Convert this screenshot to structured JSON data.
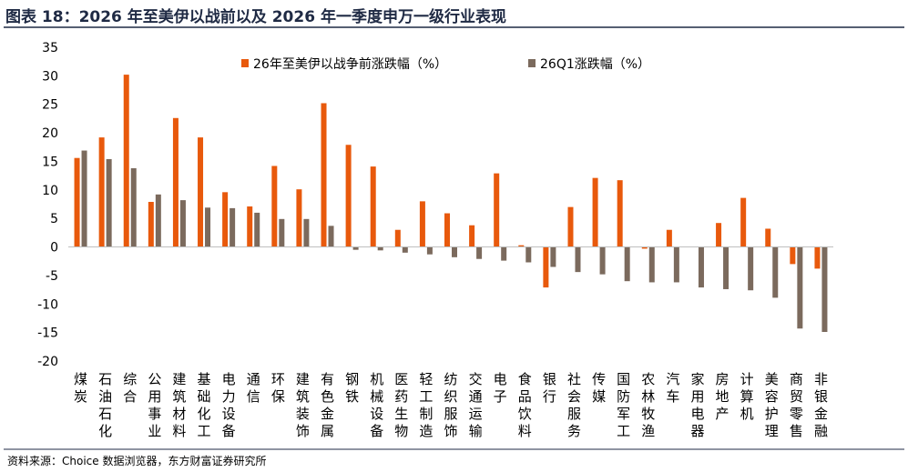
{
  "figure": {
    "title": "图表 18：2026 年至美伊以战前以及 2026 年一季度申万一级行业表现",
    "source": "资料来源：Choice 数据浏览器，东方财富证券研究所"
  },
  "chart_data": {
    "type": "bar",
    "title": "",
    "xlabel": "",
    "ylabel": "",
    "ylim": [
      -20,
      35
    ],
    "yticks": [
      -20,
      -15,
      -10,
      -5,
      0,
      5,
      10,
      15,
      20,
      25,
      30,
      35
    ],
    "grid": false,
    "legend_position": "top-center",
    "categories": [
      "煤炭",
      "石油石化",
      "综合",
      "公用事业",
      "建筑材料",
      "基础化工",
      "电力设备",
      "通信",
      "环保",
      "建筑装饰",
      "有色金属",
      "钢铁",
      "机械设备",
      "医药生物",
      "轻工制造",
      "纺织服饰",
      "交通运输",
      "电子",
      "食品饮料",
      "银行",
      "社会服务",
      "传媒",
      "国防军工",
      "农林牧渔",
      "汽车",
      "家用电器",
      "房地产",
      "计算机",
      "美容护理",
      "商贸零售",
      "非银金融"
    ],
    "series": [
      {
        "name": "26年至美伊以战争前涨跌幅（%）",
        "color": "#e8590c",
        "values": [
          15.6,
          19.2,
          30.2,
          7.9,
          22.6,
          19.2,
          9.6,
          7.1,
          14.2,
          10.1,
          25.2,
          17.9,
          14.1,
          3.0,
          8.0,
          5.9,
          3.8,
          12.9,
          0.3,
          -7.1,
          7.0,
          12.1,
          11.7,
          -0.3,
          3.0,
          0.0,
          4.2,
          8.6,
          3.2,
          -3.0,
          -3.8
        ]
      },
      {
        "name": "26Q1涨跌幅（%）",
        "color": "#7b6a5d",
        "values": [
          16.9,
          15.4,
          13.8,
          9.2,
          8.2,
          6.9,
          6.8,
          6.0,
          4.9,
          4.9,
          3.7,
          -0.5,
          -0.6,
          -1.0,
          -1.3,
          -1.8,
          -2.1,
          -2.4,
          -2.7,
          -3.5,
          -4.4,
          -4.8,
          -6.0,
          -6.2,
          -6.2,
          -7.1,
          -7.4,
          -7.6,
          -8.9,
          -14.3,
          -14.9
        ]
      }
    ]
  }
}
